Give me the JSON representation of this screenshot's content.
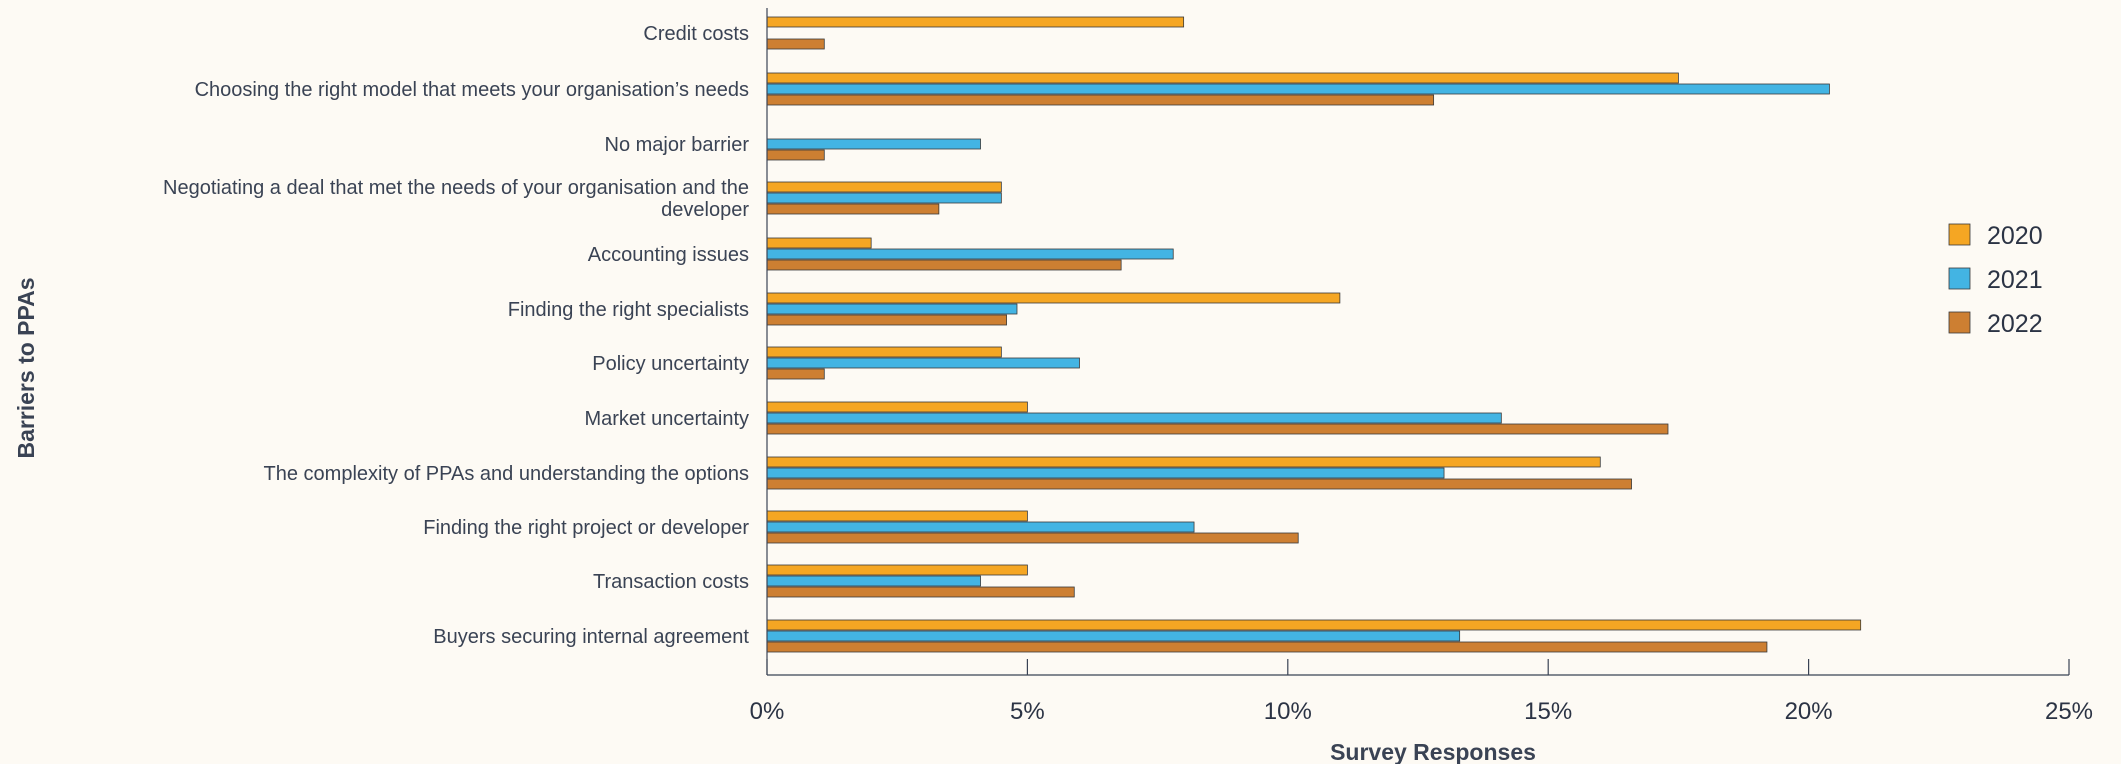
{
  "chart_data": {
    "type": "bar",
    "orientation": "horizontal",
    "title": "",
    "xlabel": "Survey Responses",
    "ylabel": "Barriers to PPAs",
    "xlim": [
      0,
      25
    ],
    "x_ticks": [
      "0%",
      "5%",
      "10%",
      "15%",
      "20%",
      "25%"
    ],
    "grid": false,
    "legend_position": "right",
    "categories": [
      [
        "Credit costs"
      ],
      [
        "Choosing the right model that meets your organisation’s needs"
      ],
      [
        "No major barrier"
      ],
      [
        "Negotiating a deal that met the needs of your organisation and the",
        "developer"
      ],
      [
        "Accounting issues"
      ],
      [
        "Finding the right specialists"
      ],
      [
        "Policy uncertainty"
      ],
      [
        "Market uncertainty"
      ],
      [
        "The complexity of PPAs and understanding the options"
      ],
      [
        "Finding the right project or developer"
      ],
      [
        "Transaction costs"
      ],
      [
        "Buyers securing internal agreement"
      ]
    ],
    "series": [
      {
        "name": "2020",
        "color": "#f5a623",
        "values": [
          8.0,
          17.5,
          0,
          4.5,
          2.0,
          11.0,
          4.5,
          5.0,
          16.0,
          5.0,
          5.0,
          21.0
        ]
      },
      {
        "name": "2021",
        "color": "#43b4e3",
        "values": [
          null,
          20.4,
          4.1,
          4.5,
          7.8,
          4.8,
          6.0,
          14.1,
          13.0,
          8.2,
          4.1,
          13.3
        ]
      },
      {
        "name": "2022",
        "color": "#cd7f32",
        "values": [
          1.1,
          12.8,
          1.1,
          3.3,
          6.8,
          4.6,
          1.1,
          17.3,
          16.6,
          10.2,
          5.9,
          19.2
        ]
      }
    ]
  }
}
